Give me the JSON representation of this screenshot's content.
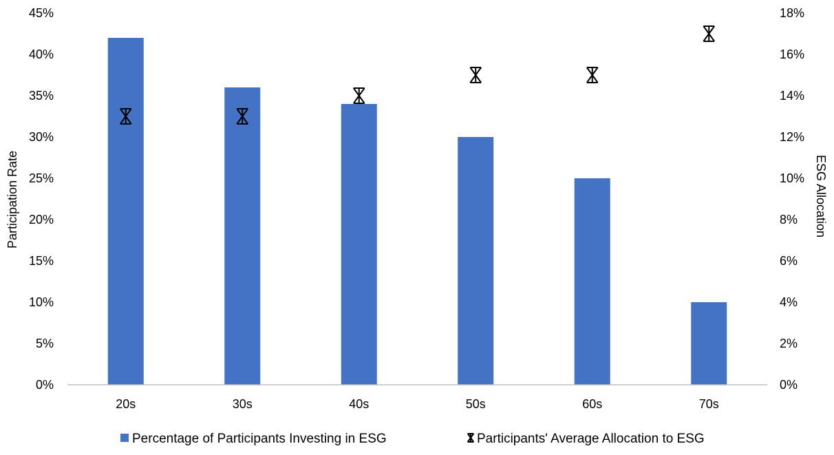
{
  "chart_data": {
    "type": "bar",
    "categories": [
      "20s",
      "30s",
      "40s",
      "50s",
      "60s",
      "70s"
    ],
    "series": [
      {
        "name": "Percentage of Participants Investing in ESG",
        "kind": "bar",
        "axis": "left",
        "values": [
          42,
          36,
          34,
          30,
          25,
          10
        ],
        "color": "#4472C4"
      },
      {
        "name": "Participants' Average Allocation to ESG",
        "kind": "marker",
        "marker": "asterisk",
        "axis": "right",
        "values": [
          13,
          13,
          14,
          15,
          15,
          17
        ],
        "color": "#000000"
      }
    ],
    "y_left": {
      "label": "Participation Rate",
      "ylim": [
        0,
        45
      ],
      "ticks": [
        0,
        5,
        10,
        15,
        20,
        25,
        30,
        35,
        40,
        45
      ],
      "tick_labels": [
        "0%",
        "5%",
        "10%",
        "15%",
        "20%",
        "25%",
        "30%",
        "35%",
        "40%",
        "45%"
      ]
    },
    "y_right": {
      "label": "ESG Allocation",
      "ylim": [
        0,
        18
      ],
      "ticks": [
        0,
        2,
        4,
        6,
        8,
        10,
        12,
        14,
        16,
        18
      ],
      "tick_labels": [
        "0%",
        "2%",
        "4%",
        "6%",
        "8%",
        "10%",
        "12%",
        "14%",
        "16%",
        "18%"
      ]
    },
    "grid": false,
    "legend": "bottom"
  }
}
